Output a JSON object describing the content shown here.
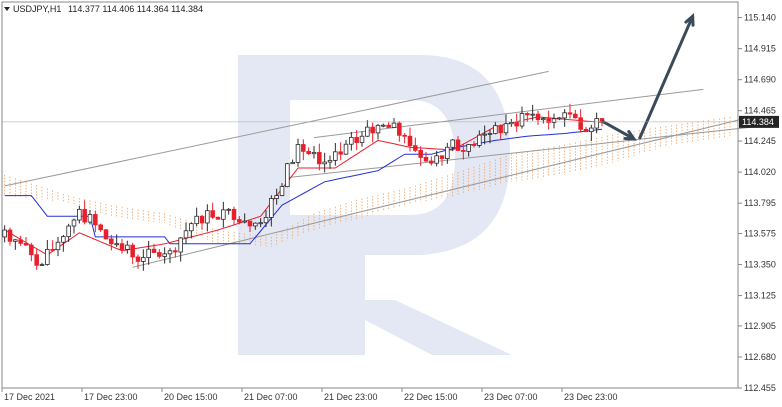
{
  "chart_data": {
    "type": "candlestick",
    "header": {
      "symbol_label": "USDJPY,H1",
      "ohlc_text": "114.377 114.406 114.364 114.384"
    },
    "current_price": {
      "value": 114.384,
      "label": "114.384"
    },
    "y_axis": {
      "range": [
        112.455,
        115.253
      ],
      "ticks": [
        {
          "value": 115.14,
          "label": "115.140"
        },
        {
          "value": 114.915,
          "label": "114.915"
        },
        {
          "value": 114.69,
          "label": "114.690"
        },
        {
          "value": 114.465,
          "label": "114.465"
        },
        {
          "value": 114.245,
          "label": "114.245"
        },
        {
          "value": 114.02,
          "label": "114.020"
        },
        {
          "value": 113.795,
          "label": "113.795"
        },
        {
          "value": 113.575,
          "label": "113.575"
        },
        {
          "value": 113.35,
          "label": "113.350"
        },
        {
          "value": 113.125,
          "label": "113.125"
        },
        {
          "value": 112.905,
          "label": "112.905"
        },
        {
          "value": 112.68,
          "label": "112.680"
        },
        {
          "value": 112.455,
          "label": "112.455"
        }
      ]
    },
    "x_axis": {
      "bar_count": 138,
      "ticks": [
        {
          "bar": 0,
          "label": "17 Dec 2021"
        },
        {
          "bar": 15,
          "label": "17 Dec 23:00"
        },
        {
          "bar": 30,
          "label": "20 Dec 15:00"
        },
        {
          "bar": 45,
          "label": "21 Dec 07:00"
        },
        {
          "bar": 60,
          "label": "21 Dec 23:00"
        },
        {
          "bar": 75,
          "label": "22 Dec 15:00"
        },
        {
          "bar": 90,
          "label": "23 Dec 07:00"
        },
        {
          "bar": 105,
          "label": "23 Dec 23:00"
        }
      ]
    },
    "candle_keys": [
      {
        "bar": 0,
        "close": 113.6
      },
      {
        "bar": 7,
        "close": 113.35
      },
      {
        "bar": 14,
        "close": 113.75
      },
      {
        "bar": 20,
        "close": 113.5
      },
      {
        "bar": 26,
        "close": 113.4
      },
      {
        "bar": 31,
        "close": 113.45
      },
      {
        "bar": 36,
        "close": 113.7
      },
      {
        "bar": 42,
        "close": 113.75
      },
      {
        "bar": 47,
        "close": 113.65
      },
      {
        "bar": 51,
        "close": 113.85
      },
      {
        "bar": 55,
        "close": 114.22
      },
      {
        "bar": 59,
        "close": 114.08
      },
      {
        "bar": 63,
        "close": 114.15
      },
      {
        "bar": 67,
        "close": 114.28
      },
      {
        "bar": 71,
        "close": 114.36
      },
      {
        "bar": 75,
        "close": 114.28
      },
      {
        "bar": 79,
        "close": 114.1
      },
      {
        "bar": 83,
        "close": 114.2
      },
      {
        "bar": 87,
        "close": 114.22
      },
      {
        "bar": 91,
        "close": 114.3
      },
      {
        "bar": 95,
        "close": 114.38
      },
      {
        "bar": 99,
        "close": 114.44
      },
      {
        "bar": 102,
        "close": 114.38
      },
      {
        "bar": 105,
        "close": 114.45
      },
      {
        "bar": 108,
        "close": 114.33
      },
      {
        "bar": 112,
        "close": 114.384
      }
    ],
    "kijun_keys": [
      {
        "bar": 0,
        "value": 113.85
      },
      {
        "bar": 5,
        "value": 113.85
      },
      {
        "bar": 8,
        "value": 113.7
      },
      {
        "bar": 16,
        "value": 113.7
      },
      {
        "bar": 17,
        "value": 113.55
      },
      {
        "bar": 30,
        "value": 113.55
      },
      {
        "bar": 31,
        "value": 113.5
      },
      {
        "bar": 46,
        "value": 113.5
      },
      {
        "bar": 52,
        "value": 113.78
      },
      {
        "bar": 60,
        "value": 113.95
      },
      {
        "bar": 70,
        "value": 114.03
      },
      {
        "bar": 75,
        "value": 114.15
      },
      {
        "bar": 80,
        "value": 114.15
      },
      {
        "bar": 85,
        "value": 114.2
      },
      {
        "bar": 92,
        "value": 114.25
      },
      {
        "bar": 98,
        "value": 114.28
      },
      {
        "bar": 105,
        "value": 114.3
      },
      {
        "bar": 112,
        "value": 114.33
      }
    ],
    "tenkan_keys": [
      {
        "bar": 0,
        "value": 113.6
      },
      {
        "bar": 8,
        "value": 113.42
      },
      {
        "bar": 14,
        "value": 113.58
      },
      {
        "bar": 22,
        "value": 113.45
      },
      {
        "bar": 30,
        "value": 113.5
      },
      {
        "bar": 40,
        "value": 113.6
      },
      {
        "bar": 48,
        "value": 113.7
      },
      {
        "bar": 55,
        "value": 114.05
      },
      {
        "bar": 62,
        "value": 114.05
      },
      {
        "bar": 70,
        "value": 114.25
      },
      {
        "bar": 76,
        "value": 114.2
      },
      {
        "bar": 84,
        "value": 114.18
      },
      {
        "bar": 92,
        "value": 114.35
      },
      {
        "bar": 100,
        "value": 114.42
      },
      {
        "bar": 106,
        "value": 114.4
      },
      {
        "bar": 112,
        "value": 114.38
      }
    ],
    "cloud_keys": [
      {
        "bar": 0,
        "a": 114.0,
        "b": 113.85
      },
      {
        "bar": 12,
        "a": 113.85,
        "b": 113.8
      },
      {
        "bar": 20,
        "a": 113.78,
        "b": 113.7
      },
      {
        "bar": 30,
        "a": 113.72,
        "b": 113.65
      },
      {
        "bar": 40,
        "a": 113.6,
        "b": 113.5
      },
      {
        "bar": 50,
        "a": 113.55,
        "b": 113.48
      },
      {
        "bar": 58,
        "a": 113.72,
        "b": 113.6
      },
      {
        "bar": 66,
        "a": 113.82,
        "b": 113.68
      },
      {
        "bar": 75,
        "a": 113.9,
        "b": 113.78
      },
      {
        "bar": 85,
        "a": 114.02,
        "b": 113.85
      },
      {
        "bar": 95,
        "a": 114.15,
        "b": 113.95
      },
      {
        "bar": 105,
        "a": 114.22,
        "b": 114.0
      },
      {
        "bar": 115,
        "a": 114.3,
        "b": 114.1
      },
      {
        "bar": 125,
        "a": 114.36,
        "b": 114.22
      },
      {
        "bar": 136,
        "a": 114.42,
        "b": 114.28
      }
    ],
    "trendlines": [
      {
        "from": {
          "bar": 0,
          "value": 113.92
        },
        "to": {
          "bar": 102,
          "value": 114.75
        },
        "color": "#9a9a9a"
      },
      {
        "from": {
          "bar": 58,
          "value": 114.27
        },
        "to": {
          "bar": 131,
          "value": 114.62
        },
        "color": "#9a9a9a"
      },
      {
        "from": {
          "bar": 24,
          "value": 113.33
        },
        "to": {
          "bar": 140,
          "value": 114.42
        },
        "color": "#9a9a9a"
      },
      {
        "from": {
          "bar": 53,
          "value": 113.98
        },
        "to": {
          "bar": 141,
          "value": 114.35
        },
        "color": "#9a9a9a"
      }
    ],
    "forecast_arrows": [
      {
        "from": {
          "bar": 112,
          "value": 114.39
        },
        "to": {
          "bar": 118,
          "value": 114.26
        }
      },
      {
        "from": {
          "bar": 119,
          "value": 114.26
        },
        "to": {
          "bar": 129,
          "value": 115.15
        }
      }
    ],
    "colors": {
      "bull": "#2a2a2a",
      "bear": "#e8202b",
      "kijun": "#2030d8",
      "tenkan": "#e8202b",
      "cloud": "#f0a060",
      "cloud_alt": "#c9a6d6",
      "arrow": "#3a4a58",
      "watermark": "#e4e8f4",
      "price_tag": "#232323"
    },
    "watermark": "R"
  }
}
